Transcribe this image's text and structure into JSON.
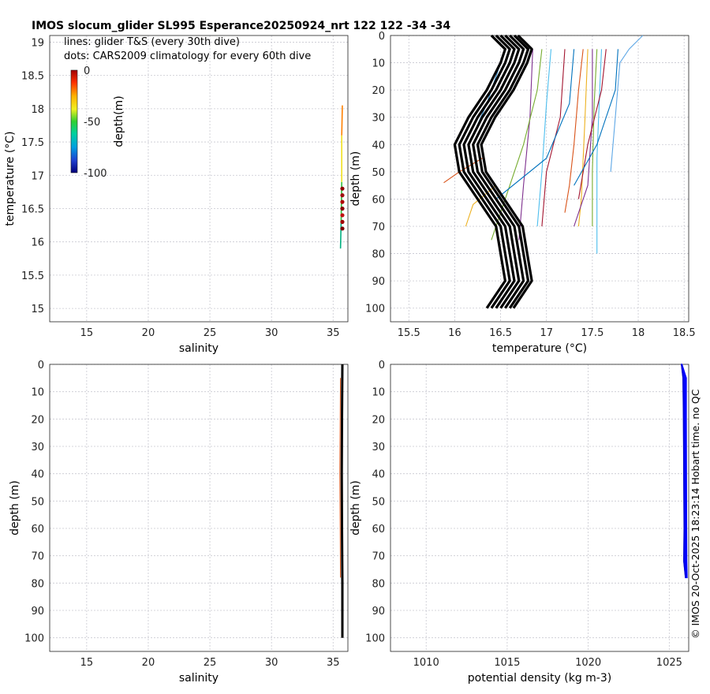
{
  "chart_data": [
    {
      "type": "line",
      "panel": "top-left",
      "title": "IMOS slocum_glider SL995 Esperance20250924_nrt 122  122  -34  -34",
      "xlabel": "salinity",
      "ylabel": "temperature (°C)",
      "xlim": [
        12,
        36.2
      ],
      "ylim": [
        14.8,
        19.1
      ],
      "xticks": [
        15,
        20,
        25,
        30,
        35
      ],
      "yticks": [
        15,
        15.5,
        16,
        16.5,
        17,
        17.5,
        18,
        18.5,
        19
      ],
      "legend_lines": [
        "lines: glider T&S (every 30th dive)",
        "dots: CARS2009 climatology for every 60th dive"
      ],
      "colorbar": {
        "label": "depth(m)",
        "ticks": [
          0,
          -50,
          -100
        ],
        "range": [
          -100,
          0
        ]
      },
      "ts_line": {
        "salinity": [
          35.6,
          35.65,
          35.7,
          35.7,
          35.75
        ],
        "temperature": [
          15.9,
          16.3,
          16.9,
          17.6,
          18.05
        ]
      },
      "climatology_dots": {
        "salinity": 35.75,
        "temperature": [
          16.2,
          16.3,
          16.4,
          16.5,
          16.6,
          16.7,
          16.8
        ]
      }
    },
    {
      "type": "line",
      "panel": "top-right",
      "xlabel": "temperature (°C)",
      "ylabel": "depth (m)",
      "xlim": [
        15.3,
        18.55
      ],
      "ylim": [
        105,
        0
      ],
      "xticks": [
        15.5,
        16,
        16.5,
        17,
        17.5,
        18,
        18.5
      ],
      "yticks": [
        0,
        10,
        20,
        30,
        40,
        50,
        60,
        70,
        80,
        90,
        100
      ],
      "climatology_profile": {
        "depth": [
          0,
          5,
          10,
          20,
          30,
          40,
          50,
          60,
          70,
          80,
          90,
          100
        ],
        "temperature": [
          16.65,
          16.8,
          16.75,
          16.6,
          16.4,
          16.25,
          16.3,
          16.5,
          16.7,
          16.75,
          16.8,
          16.6
        ],
        "offsets": [
          -0.25,
          -0.2,
          -0.15,
          -0.1,
          -0.05,
          0,
          0.04
        ]
      },
      "glider_profiles": [
        {
          "color": "#1f77b4",
          "depth": [
            5,
            15,
            25,
            35
          ],
          "temperature": [
            16.55,
            16.45,
            16.35,
            16.22
          ]
        },
        {
          "color": "#d95319",
          "depth": [
            45,
            50,
            54
          ],
          "temperature": [
            16.3,
            16.05,
            15.88
          ]
        },
        {
          "color": "#edb120",
          "depth": [
            55,
            62,
            70
          ],
          "temperature": [
            16.45,
            16.2,
            16.12
          ]
        },
        {
          "color": "#7e2f8e",
          "depth": [
            5,
            30,
            55,
            75
          ],
          "temperature": [
            16.85,
            16.82,
            16.75,
            16.7
          ]
        },
        {
          "color": "#77ac30",
          "depth": [
            5,
            20,
            40,
            60,
            75
          ],
          "temperature": [
            16.95,
            16.9,
            16.75,
            16.55,
            16.4
          ]
        },
        {
          "color": "#4dbeee",
          "depth": [
            5,
            25,
            50,
            70
          ],
          "temperature": [
            17.05,
            17.0,
            16.95,
            16.9
          ]
        },
        {
          "color": "#a2142f",
          "depth": [
            5,
            30,
            50,
            70
          ],
          "temperature": [
            17.2,
            17.15,
            17.0,
            16.95
          ]
        },
        {
          "color": "#0072bd",
          "depth": [
            5,
            25,
            45,
            60
          ],
          "temperature": [
            17.3,
            17.25,
            17.0,
            16.45
          ]
        },
        {
          "color": "#d95319",
          "depth": [
            5,
            20,
            40,
            55,
            65
          ],
          "temperature": [
            17.4,
            17.35,
            17.3,
            17.25,
            17.2
          ]
        },
        {
          "color": "#edb120",
          "depth": [
            5,
            30,
            60,
            70
          ],
          "temperature": [
            17.45,
            17.42,
            17.38,
            17.35
          ]
        },
        {
          "color": "#7e2f8e",
          "depth": [
            5,
            30,
            55,
            70
          ],
          "temperature": [
            17.5,
            17.5,
            17.45,
            17.3
          ]
        },
        {
          "color": "#77ac30",
          "depth": [
            5,
            25,
            50,
            70
          ],
          "temperature": [
            17.55,
            17.52,
            17.5,
            17.5
          ]
        },
        {
          "color": "#4dbeee",
          "depth": [
            5,
            20,
            45,
            80
          ],
          "temperature": [
            17.6,
            17.58,
            17.55,
            17.55
          ]
        },
        {
          "color": "#a2142f",
          "depth": [
            5,
            20,
            40,
            60
          ],
          "temperature": [
            17.65,
            17.6,
            17.45,
            17.35
          ]
        },
        {
          "color": "#0072bd",
          "depth": [
            5,
            20,
            40,
            55
          ],
          "temperature": [
            17.78,
            17.75,
            17.55,
            17.3
          ]
        },
        {
          "color": "#5fa8e6",
          "depth": [
            0,
            5,
            10,
            30,
            50
          ],
          "temperature": [
            18.05,
            17.9,
            17.8,
            17.75,
            17.7
          ]
        }
      ]
    },
    {
      "type": "line",
      "panel": "bottom-left",
      "xlabel": "salinity",
      "ylabel": "depth (m)",
      "xlim": [
        12,
        36.2
      ],
      "ylim": [
        105,
        0
      ],
      "xticks": [
        15,
        20,
        25,
        30,
        35
      ],
      "yticks": [
        0,
        10,
        20,
        30,
        40,
        50,
        60,
        70,
        80,
        90,
        100
      ],
      "profile": {
        "depth": [
          0,
          20,
          40,
          60,
          80,
          100
        ],
        "salinity": [
          35.75,
          35.72,
          35.7,
          35.72,
          35.75,
          35.75
        ]
      }
    },
    {
      "type": "line",
      "panel": "bottom-right",
      "xlabel": "potential density (kg m-3)",
      "ylabel": "depth (m)",
      "xlim": [
        1007.8,
        1026.2
      ],
      "ylim": [
        105,
        0
      ],
      "xticks": [
        1010,
        1015,
        1020,
        1025
      ],
      "yticks": [
        0,
        10,
        20,
        30,
        40,
        50,
        60,
        70,
        80,
        90,
        100
      ],
      "profile_envelope": {
        "depth": [
          0,
          5,
          20,
          40,
          60,
          72,
          78
        ],
        "density_min": [
          1025.75,
          1025.85,
          1025.88,
          1025.9,
          1025.92,
          1025.9,
          1026.0
        ],
        "density_max": [
          1025.78,
          1026.05,
          1026.05,
          1026.06,
          1026.07,
          1026.08,
          1026.1
        ]
      }
    }
  ],
  "credit": "© IMOS 20-Oct-2025 18:23:14 Hobart time. no QC"
}
